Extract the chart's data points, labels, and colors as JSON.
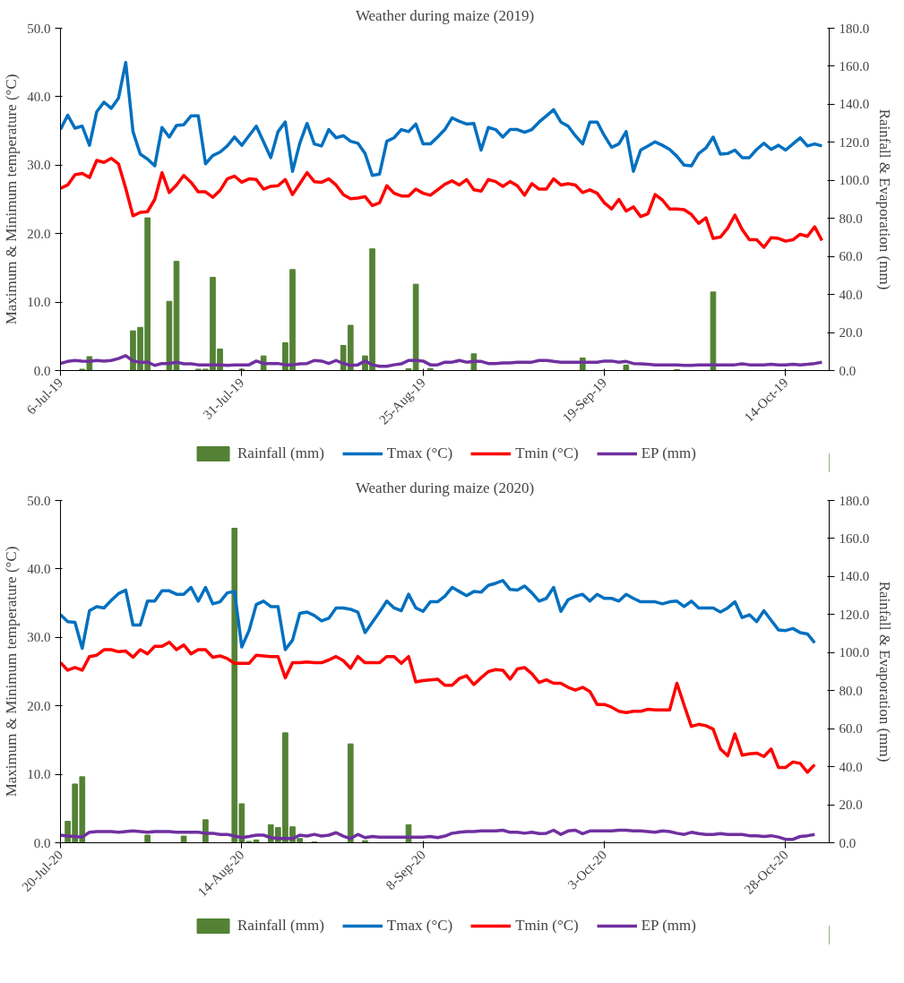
{
  "chart_data": [
    {
      "type": "line",
      "title": "Weather during maize (2019)",
      "ylabel": "Maximum & Minimum temperature (°C)",
      "y2label": "Rainfall & Evaporation (mm)",
      "legend": "bottom",
      "grid": false,
      "xlim": [
        "2019-07-06",
        "2019-10-20"
      ],
      "xticks": [
        {
          "value": "2019-07-06",
          "label": "6-Jul-19"
        },
        {
          "value": "2019-07-31",
          "label": "31-Jul-19"
        },
        {
          "value": "2019-08-25",
          "label": "25-Aug-19"
        },
        {
          "value": "2019-09-19",
          "label": "19-Sep-19"
        },
        {
          "value": "2019-10-14",
          "label": "14-Oct-19"
        }
      ],
      "ylim": [
        0,
        50
      ],
      "yticks": [
        {
          "value": 0,
          "label": "0.0"
        },
        {
          "value": 10,
          "label": "10.0"
        },
        {
          "value": 20,
          "label": "20.0"
        },
        {
          "value": 30,
          "label": "30.0"
        },
        {
          "value": 40,
          "label": "40.0"
        },
        {
          "value": 50,
          "label": "50.0"
        }
      ],
      "y2lim": [
        0,
        180
      ],
      "y2ticks": [
        {
          "value": 0,
          "label": "0.0"
        },
        {
          "value": 20,
          "label": "20.0"
        },
        {
          "value": 40,
          "label": "40.0"
        },
        {
          "value": 60,
          "label": "60.0"
        },
        {
          "value": 80,
          "label": "80.0"
        },
        {
          "value": 100,
          "label": "100.0"
        },
        {
          "value": 120,
          "label": "120.0"
        },
        {
          "value": 140,
          "label": "140.0"
        },
        {
          "value": 160,
          "label": "160.0"
        },
        {
          "value": 180,
          "label": "180.0"
        }
      ],
      "x": [
        "2019-07-06",
        "2019-07-07",
        "2019-07-08",
        "2019-07-09",
        "2019-07-10",
        "2019-07-11",
        "2019-07-12",
        "2019-07-13",
        "2019-07-14",
        "2019-07-15",
        "2019-07-16",
        "2019-07-17",
        "2019-07-18",
        "2019-07-19",
        "2019-07-20",
        "2019-07-21",
        "2019-07-22",
        "2019-07-23",
        "2019-07-24",
        "2019-07-25",
        "2019-07-26",
        "2019-07-27",
        "2019-07-28",
        "2019-07-29",
        "2019-07-30",
        "2019-07-31",
        "2019-08-01",
        "2019-08-02",
        "2019-08-03",
        "2019-08-04",
        "2019-08-05",
        "2019-08-06",
        "2019-08-07",
        "2019-08-08",
        "2019-08-09",
        "2019-08-10",
        "2019-08-11",
        "2019-08-12",
        "2019-08-13",
        "2019-08-14",
        "2019-08-15",
        "2019-08-16",
        "2019-08-17",
        "2019-08-18",
        "2019-08-19",
        "2019-08-20",
        "2019-08-21",
        "2019-08-22",
        "2019-08-23",
        "2019-08-24",
        "2019-08-25",
        "2019-08-26",
        "2019-08-27",
        "2019-08-28",
        "2019-08-29",
        "2019-08-30",
        "2019-08-31",
        "2019-09-01",
        "2019-09-02",
        "2019-09-03",
        "2019-09-04",
        "2019-09-05",
        "2019-09-06",
        "2019-09-07",
        "2019-09-08",
        "2019-09-09",
        "2019-09-10",
        "2019-09-11",
        "2019-09-12",
        "2019-09-13",
        "2019-09-14",
        "2019-09-15",
        "2019-09-16",
        "2019-09-17",
        "2019-09-18",
        "2019-09-19",
        "2019-09-20",
        "2019-09-21",
        "2019-09-22",
        "2019-09-23",
        "2019-09-24",
        "2019-09-25",
        "2019-09-26",
        "2019-09-27",
        "2019-09-28",
        "2019-09-29",
        "2019-09-30",
        "2019-10-01",
        "2019-10-02",
        "2019-10-03",
        "2019-10-04",
        "2019-10-05",
        "2019-10-06",
        "2019-10-07",
        "2019-10-08",
        "2019-10-09",
        "2019-10-10",
        "2019-10-11",
        "2019-10-12",
        "2019-10-13",
        "2019-10-14",
        "2019-10-15",
        "2019-10-16",
        "2019-10-17",
        "2019-10-18",
        "2019-10-19"
      ],
      "series": [
        {
          "name": "Rainfall (mm)",
          "type": "bar",
          "axis": "y2",
          "color": "#548235",
          "x": [
            "2019-07-09",
            "2019-07-10",
            "2019-07-16",
            "2019-07-17",
            "2019-07-18",
            "2019-07-21",
            "2019-07-22",
            "2019-07-25",
            "2019-07-26",
            "2019-07-27",
            "2019-07-28",
            "2019-07-31",
            "2019-08-03",
            "2019-08-06",
            "2019-08-07",
            "2019-08-14",
            "2019-08-15",
            "2019-08-17",
            "2019-08-18",
            "2019-08-23",
            "2019-08-24",
            "2019-08-26",
            "2019-09-01",
            "2019-09-16",
            "2019-09-22",
            "2019-09-29",
            "2019-10-04"
          ],
          "values": [
            0.7,
            7.3,
            20.9,
            22.7,
            80.3,
            36.4,
            57.4,
            0.7,
            0.7,
            49.0,
            11.3,
            0.7,
            7.7,
            14.6,
            53.1,
            13.2,
            23.8,
            7.7,
            64.0,
            1.0,
            45.4,
            1.1,
            8.8,
            6.6,
            2.9,
            0.5,
            41.3
          ]
        },
        {
          "name": "Tmax (°C)",
          "color": "#0070c0",
          "values": [
            35.2,
            37.3,
            35.4,
            35.7,
            32.9,
            37.8,
            39.2,
            38.3,
            39.8,
            45.0,
            34.9,
            31.6,
            30.9,
            29.9,
            35.5,
            34.1,
            35.8,
            35.9,
            37.2,
            37.2,
            30.2,
            31.4,
            31.9,
            32.8,
            34.1,
            32.9,
            34.3,
            35.7,
            33.4,
            31.1,
            34.9,
            36.3,
            29.1,
            33.2,
            36.1,
            33.1,
            32.8,
            35.2,
            34.0,
            34.3,
            33.5,
            33.2,
            31.7,
            28.5,
            28.7,
            33.5,
            34.0,
            35.2,
            34.9,
            36.0,
            33.1,
            33.1,
            34.1,
            35.2,
            36.9,
            36.4,
            36.0,
            36.1,
            32.2,
            35.5,
            35.2,
            34.1,
            35.2,
            35.2,
            34.8,
            35.2,
            36.3,
            37.2,
            38.1,
            36.3,
            35.7,
            34.3,
            33.1,
            36.3,
            36.3,
            34.3,
            32.6,
            33.1,
            34.9,
            29.1,
            32.2,
            32.8,
            33.4,
            32.9,
            32.3,
            31.3,
            30.0,
            29.9,
            31.7,
            32.5,
            34.1,
            31.6,
            31.7,
            32.2,
            31.1,
            31.1,
            32.3,
            33.2,
            32.3,
            32.9,
            32.2,
            33.1,
            34.0,
            32.8,
            33.1,
            32.8
          ]
        },
        {
          "name": "Tmin (°C)",
          "color": "#ff0000",
          "values": [
            26.6,
            27.1,
            28.6,
            28.8,
            28.2,
            30.7,
            30.4,
            31.0,
            30.2,
            26.6,
            22.6,
            23.1,
            23.2,
            25.0,
            28.9,
            26.0,
            27.1,
            28.5,
            27.5,
            26.1,
            26.1,
            25.3,
            26.3,
            28.0,
            28.4,
            27.5,
            28.0,
            27.9,
            26.5,
            26.9,
            27.0,
            27.9,
            25.7,
            27.3,
            28.9,
            27.6,
            27.5,
            28.0,
            27.1,
            25.7,
            25.1,
            25.2,
            25.4,
            24.1,
            24.5,
            27.0,
            25.9,
            25.5,
            25.5,
            26.5,
            25.9,
            25.6,
            26.4,
            27.2,
            27.7,
            27.1,
            27.9,
            26.4,
            26.2,
            27.9,
            27.6,
            26.9,
            27.6,
            27.0,
            25.6,
            27.3,
            26.5,
            26.5,
            28.0,
            27.1,
            27.3,
            27.1,
            26.0,
            26.4,
            25.9,
            24.5,
            23.6,
            25.0,
            23.3,
            23.9,
            22.5,
            22.9,
            25.7,
            24.9,
            23.6,
            23.6,
            23.5,
            22.8,
            21.5,
            22.3,
            19.3,
            19.5,
            20.8,
            22.7,
            20.6,
            19.1,
            19.1,
            18.0,
            19.4,
            19.3,
            18.9,
            19.1,
            19.9,
            19.6,
            21.0,
            19.0
          ]
        },
        {
          "name": "EP (mm)",
          "axis": "y2",
          "color": "#7030a0",
          "values": [
            3.7,
            4.8,
            5.3,
            5.0,
            4.8,
            5.3,
            5.0,
            5.3,
            6.3,
            7.8,
            5.0,
            4.4,
            4.4,
            2.7,
            3.7,
            3.7,
            4.4,
            3.5,
            3.5,
            3.0,
            3.0,
            3.0,
            3.0,
            2.7,
            3.0,
            3.0,
            3.0,
            5.0,
            3.7,
            3.7,
            3.7,
            3.0,
            3.0,
            3.5,
            3.7,
            5.3,
            5.0,
            3.7,
            5.3,
            3.7,
            2.7,
            3.0,
            5.0,
            3.0,
            2.2,
            2.2,
            3.0,
            3.5,
            5.3,
            5.3,
            5.0,
            3.0,
            3.0,
            4.4,
            4.4,
            5.3,
            4.4,
            4.8,
            4.8,
            3.7,
            3.7,
            4.0,
            4.0,
            4.4,
            4.4,
            4.4,
            5.3,
            5.3,
            4.8,
            4.4,
            4.4,
            4.4,
            4.4,
            4.4,
            4.4,
            5.0,
            5.0,
            4.4,
            4.8,
            3.7,
            3.5,
            3.3,
            3.0,
            3.0,
            3.0,
            3.0,
            2.7,
            2.7,
            3.0,
            3.0,
            3.0,
            3.0,
            3.0,
            3.0,
            3.5,
            3.0,
            3.0,
            3.0,
            3.3,
            3.0,
            3.0,
            3.3,
            3.0,
            3.3,
            3.7,
            4.4
          ]
        }
      ]
    },
    {
      "type": "line",
      "title": "Weather during maize (2020)",
      "ylabel": "Maximum & Minimum temperature (°C)",
      "y2label": "Rainfall & Evaporation (mm)",
      "legend": "bottom",
      "grid": false,
      "xlim": [
        "2020-07-20",
        "2020-11-03"
      ],
      "xticks": [
        {
          "value": "2020-07-20",
          "label": "20-Jul-20"
        },
        {
          "value": "2020-08-14",
          "label": "14-Aug-20"
        },
        {
          "value": "2020-09-08",
          "label": "8-Sep-20"
        },
        {
          "value": "2020-10-03",
          "label": "3-Oct-20"
        },
        {
          "value": "2020-10-28",
          "label": "28-Oct-20"
        }
      ],
      "ylim": [
        0,
        50
      ],
      "yticks": [
        {
          "value": 0,
          "label": "0.0"
        },
        {
          "value": 10,
          "label": "10.0"
        },
        {
          "value": 20,
          "label": "20.0"
        },
        {
          "value": 30,
          "label": "30.0"
        },
        {
          "value": 40,
          "label": "40.0"
        },
        {
          "value": 50,
          "label": "50.0"
        }
      ],
      "y2lim": [
        0,
        180
      ],
      "y2ticks": [
        {
          "value": 0,
          "label": "0.0"
        },
        {
          "value": 20,
          "label": "20.0"
        },
        {
          "value": 40,
          "label": "40.0"
        },
        {
          "value": 60,
          "label": "60.0"
        },
        {
          "value": 80,
          "label": "80.0"
        },
        {
          "value": 100,
          "label": "100.0"
        },
        {
          "value": 120,
          "label": "120.0"
        },
        {
          "value": 140,
          "label": "140.0"
        },
        {
          "value": 160,
          "label": "160.0"
        },
        {
          "value": 180,
          "label": "180.0"
        }
      ],
      "x": [
        "2020-07-20",
        "2020-07-21",
        "2020-07-22",
        "2020-07-23",
        "2020-07-24",
        "2020-07-25",
        "2020-07-26",
        "2020-07-27",
        "2020-07-28",
        "2020-07-29",
        "2020-07-30",
        "2020-07-31",
        "2020-08-01",
        "2020-08-02",
        "2020-08-03",
        "2020-08-04",
        "2020-08-05",
        "2020-08-06",
        "2020-08-07",
        "2020-08-08",
        "2020-08-09",
        "2020-08-10",
        "2020-08-11",
        "2020-08-12",
        "2020-08-13",
        "2020-08-14",
        "2020-08-15",
        "2020-08-16",
        "2020-08-17",
        "2020-08-18",
        "2020-08-19",
        "2020-08-20",
        "2020-08-21",
        "2020-08-22",
        "2020-08-23",
        "2020-08-24",
        "2020-08-25",
        "2020-08-26",
        "2020-08-27",
        "2020-08-28",
        "2020-08-29",
        "2020-08-30",
        "2020-08-31",
        "2020-09-01",
        "2020-09-02",
        "2020-09-03",
        "2020-09-04",
        "2020-09-05",
        "2020-09-06",
        "2020-09-07",
        "2020-09-08",
        "2020-09-09",
        "2020-09-10",
        "2020-09-11",
        "2020-09-12",
        "2020-09-13",
        "2020-09-14",
        "2020-09-15",
        "2020-09-16",
        "2020-09-17",
        "2020-09-18",
        "2020-09-19",
        "2020-09-20",
        "2020-09-21",
        "2020-09-22",
        "2020-09-23",
        "2020-09-24",
        "2020-09-25",
        "2020-09-26",
        "2020-09-27",
        "2020-09-28",
        "2020-09-29",
        "2020-09-30",
        "2020-10-01",
        "2020-10-02",
        "2020-10-03",
        "2020-10-04",
        "2020-10-05",
        "2020-10-06",
        "2020-10-07",
        "2020-10-08",
        "2020-10-09",
        "2020-10-10",
        "2020-10-11",
        "2020-10-12",
        "2020-10-13",
        "2020-10-14",
        "2020-10-15",
        "2020-10-16",
        "2020-10-17",
        "2020-10-18",
        "2020-10-19",
        "2020-10-20",
        "2020-10-21",
        "2020-10-22",
        "2020-10-23",
        "2020-10-24",
        "2020-10-25",
        "2020-10-26",
        "2020-10-27",
        "2020-10-28",
        "2020-10-29",
        "2020-10-30",
        "2020-10-31",
        "2020-11-01"
      ],
      "series": [
        {
          "name": "Rainfall (mm)",
          "type": "bar",
          "axis": "y2",
          "color": "#548235",
          "x": [
            "2020-07-21",
            "2020-07-22",
            "2020-07-23",
            "2020-08-01",
            "2020-08-06",
            "2020-08-09",
            "2020-08-13",
            "2020-08-14",
            "2020-08-15",
            "2020-08-16",
            "2020-08-18",
            "2020-08-19",
            "2020-08-20",
            "2020-08-21",
            "2020-08-22",
            "2020-08-24",
            "2020-08-29",
            "2020-08-31",
            "2020-09-06"
          ],
          "values": [
            11.3,
            30.9,
            34.7,
            4.0,
            3.5,
            12.1,
            165.4,
            20.5,
            0.7,
            1.5,
            9.5,
            8.0,
            57.8,
            8.4,
            2.2,
            0.5,
            52.0,
            1.1,
            9.5
          ]
        },
        {
          "name": "Tmax (°C)",
          "color": "#0070c0",
          "values": [
            33.3,
            32.3,
            32.2,
            28.4,
            33.9,
            34.5,
            34.3,
            35.4,
            36.4,
            36.9,
            31.8,
            31.8,
            35.3,
            35.3,
            36.8,
            36.8,
            36.3,
            36.3,
            37.3,
            35.3,
            37.3,
            34.9,
            35.2,
            36.5,
            36.7,
            28.6,
            31.0,
            34.8,
            35.3,
            34.5,
            34.5,
            28.2,
            29.6,
            33.5,
            33.7,
            33.2,
            32.4,
            32.8,
            34.3,
            34.3,
            34.1,
            33.7,
            30.7,
            32.2,
            33.7,
            35.3,
            34.3,
            33.9,
            36.3,
            34.3,
            33.8,
            35.2,
            35.2,
            36.0,
            37.3,
            36.7,
            36.1,
            36.7,
            36.6,
            37.6,
            37.9,
            38.3,
            37.0,
            36.9,
            37.5,
            36.5,
            35.3,
            35.7,
            37.3,
            33.8,
            35.5,
            36.0,
            36.3,
            35.3,
            36.3,
            35.7,
            35.7,
            35.3,
            36.3,
            35.7,
            35.2,
            35.2,
            35.2,
            34.9,
            35.2,
            35.3,
            34.5,
            35.3,
            34.3,
            34.3,
            34.3,
            33.7,
            34.3,
            35.2,
            32.9,
            33.3,
            32.3,
            33.9,
            32.5,
            31.1,
            31.0,
            31.3,
            30.7,
            30.5,
            29.2
          ]
        },
        {
          "name": "Tmin (°C)",
          "color": "#ff0000",
          "values": [
            26.3,
            25.2,
            25.6,
            25.2,
            27.2,
            27.4,
            28.2,
            28.2,
            27.9,
            28.0,
            27.1,
            28.2,
            27.6,
            28.7,
            28.7,
            29.3,
            28.2,
            28.9,
            27.6,
            28.2,
            28.2,
            27.1,
            27.3,
            26.9,
            26.2,
            26.2,
            26.2,
            27.4,
            27.3,
            27.2,
            27.2,
            24.1,
            26.3,
            26.3,
            26.4,
            26.3,
            26.3,
            26.7,
            27.2,
            26.6,
            25.5,
            27.2,
            26.3,
            26.3,
            26.3,
            27.2,
            27.2,
            26.2,
            27.2,
            23.5,
            23.7,
            23.8,
            23.9,
            23.0,
            23.0,
            24.0,
            24.4,
            23.1,
            24.1,
            25.0,
            25.3,
            25.2,
            23.9,
            25.4,
            25.6,
            24.7,
            23.4,
            23.8,
            23.3,
            23.3,
            22.7,
            22.3,
            22.7,
            22.1,
            20.2,
            20.2,
            19.8,
            19.2,
            19.0,
            19.2,
            19.2,
            19.5,
            19.4,
            19.4,
            19.4,
            23.3,
            20.1,
            17.0,
            17.3,
            17.1,
            16.6,
            13.7,
            12.7,
            15.9,
            12.8,
            13.0,
            13.1,
            12.6,
            13.7,
            11.0,
            11.0,
            11.8,
            11.6,
            10.3,
            11.4
          ]
        },
        {
          "name": "EP (mm)",
          "axis": "y2",
          "color": "#7030a0",
          "values": [
            4.0,
            3.5,
            3.3,
            3.0,
            5.5,
            5.9,
            5.9,
            5.9,
            5.5,
            5.9,
            6.2,
            5.9,
            5.5,
            5.9,
            5.9,
            5.9,
            5.5,
            5.5,
            5.5,
            5.5,
            5.0,
            5.0,
            4.4,
            4.4,
            3.5,
            2.7,
            3.3,
            4.0,
            4.0,
            2.7,
            2.2,
            2.2,
            2.2,
            4.0,
            3.5,
            4.4,
            3.5,
            4.0,
            5.3,
            3.5,
            2.2,
            4.4,
            2.7,
            3.3,
            3.0,
            3.0,
            3.0,
            3.0,
            3.0,
            3.0,
            3.0,
            3.3,
            2.7,
            3.5,
            5.0,
            5.5,
            5.9,
            5.9,
            6.2,
            6.2,
            6.2,
            6.6,
            5.5,
            5.5,
            5.0,
            5.5,
            4.8,
            5.0,
            6.6,
            4.4,
            6.2,
            6.6,
            4.8,
            6.2,
            6.2,
            6.2,
            6.2,
            6.6,
            6.6,
            6.2,
            6.2,
            5.9,
            5.5,
            6.2,
            5.9,
            5.0,
            4.4,
            5.5,
            4.8,
            4.4,
            4.4,
            4.8,
            4.4,
            4.4,
            4.4,
            3.7,
            3.7,
            3.3,
            3.7,
            3.0,
            1.8,
            1.8,
            3.3,
            3.7,
            4.4
          ]
        }
      ]
    }
  ]
}
